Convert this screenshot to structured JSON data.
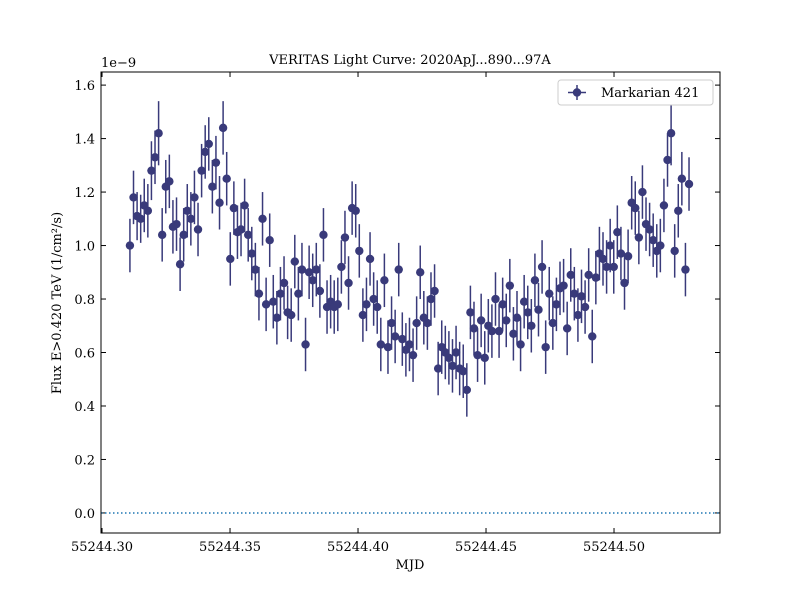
{
  "chart_data": {
    "type": "errorbar",
    "title": "VERITAS Light Curve: 2020ApJ...890...97A",
    "xlabel": "MJD",
    "ylabel": "Flux E>0.420 TeV (1/cm²/s)",
    "y_offset_label": "1e−9",
    "xlim": [
      55244.2996,
      55244.5414
    ],
    "ylim": [
      -0.075,
      1.649
    ],
    "xticks": [
      {
        "value": 55244.3,
        "label": "55244.30"
      },
      {
        "value": 55244.35,
        "label": "55244.35"
      },
      {
        "value": 55244.4,
        "label": "55244.40"
      },
      {
        "value": 55244.45,
        "label": "55244.45"
      },
      {
        "value": 55244.5,
        "label": "55244.50"
      }
    ],
    "yticks": [
      {
        "value": 0,
        "label": "0.0"
      },
      {
        "value": 0.2,
        "label": "0.2"
      },
      {
        "value": 0.4,
        "label": "0.4"
      },
      {
        "value": 0.6,
        "label": "0.6"
      },
      {
        "value": 0.8,
        "label": "0.8"
      },
      {
        "value": 1,
        "label": "1.0"
      },
      {
        "value": 1.2,
        "label": "1.2"
      },
      {
        "value": 1.4,
        "label": "1.4"
      },
      {
        "value": 1.6,
        "label": "1.6"
      }
    ],
    "hline": {
      "y": 0,
      "color": "#1f77b4"
    },
    "legend": "upper right",
    "series": [
      {
        "name": "Markarian 421",
        "color": "#393a7a",
        "x": [
          55244.3109,
          55244.3123,
          55244.3137,
          55244.3151,
          55244.3165,
          55244.3179,
          55244.3193,
          55244.3207,
          55244.3221,
          55244.3235,
          55244.3249,
          55244.3263,
          55244.3277,
          55244.3291,
          55244.3305,
          55244.3319,
          55244.3333,
          55244.3347,
          55244.3361,
          55244.3375,
          55244.3389,
          55244.3403,
          55244.3417,
          55244.3431,
          55244.3445,
          55244.3459,
          55244.3473,
          55244.3487,
          55244.3501,
          55244.3515,
          55244.3529,
          55244.3543,
          55244.3557,
          55244.3571,
          55244.3585,
          55244.3599,
          55244.3613,
          55244.3627,
          55244.3641,
          55244.3655,
          55244.3669,
          55244.3683,
          55244.3697,
          55244.3711,
          55244.3725,
          55244.3739,
          55244.3753,
          55244.3767,
          55244.3781,
          55244.3795,
          55244.3809,
          55244.3823,
          55244.3837,
          55244.3851,
          55244.3865,
          55244.3879,
          55244.3893,
          55244.3907,
          55244.3921,
          55244.3935,
          55244.3949,
          55244.3963,
          55244.3977,
          55244.3991,
          55244.4005,
          55244.4019,
          55244.4033,
          55244.4047,
          55244.4061,
          55244.4075,
          55244.4089,
          55244.4103,
          55244.4117,
          55244.4131,
          55244.4145,
          55244.4159,
          55244.4173,
          55244.4187,
          55244.4201,
          55244.4215,
          55244.4229,
          55244.4243,
          55244.4257,
          55244.4271,
          55244.4285,
          55244.4299,
          55244.4313,
          55244.4327,
          55244.4341,
          55244.4355,
          55244.4369,
          55244.4383,
          55244.4397,
          55244.4411,
          55244.4425,
          55244.4439,
          55244.4453,
          55244.4467,
          55244.4481,
          55244.4495,
          55244.4509,
          55244.4523,
          55244.4537,
          55244.4551,
          55244.4565,
          55244.4579,
          55244.4593,
          55244.4607,
          55244.4621,
          55244.4635,
          55244.4649,
          55244.4663,
          55244.4677,
          55244.4691,
          55244.4705,
          55244.4719,
          55244.4733,
          55244.4747,
          55244.4761,
          55244.4775,
          55244.4789,
          55244.4803,
          55244.4817,
          55244.4831,
          55244.4845,
          55244.4859,
          55244.4873,
          55244.4887,
          55244.4901,
          55244.4915,
          55244.4929,
          55244.4943,
          55244.4957,
          55244.4971,
          55244.4985,
          55244.4999,
          55244.5013,
          55244.5027,
          55244.5041,
          55244.5055,
          55244.5069,
          55244.5083,
          55244.5097,
          55244.5111,
          55244.5125,
          55244.5139,
          55244.5153,
          55244.5167,
          55244.5181,
          55244.5195,
          55244.5209,
          55244.5223,
          55244.5237,
          55244.5251,
          55244.5265,
          55244.5279,
          55244.5293
        ],
        "values": [
          1.0,
          1.18,
          1.11,
          1.1,
          1.15,
          1.13,
          1.28,
          1.33,
          1.42,
          1.04,
          1.22,
          1.24,
          1.07,
          1.08,
          0.93,
          1.04,
          1.13,
          1.1,
          1.18,
          1.06,
          1.28,
          1.35,
          1.38,
          1.22,
          1.31,
          1.16,
          1.44,
          1.25,
          0.95,
          1.14,
          1.05,
          1.06,
          1.15,
          1.04,
          0.97,
          0.91,
          0.82,
          1.1,
          0.78,
          1.02,
          0.79,
          0.73,
          0.82,
          0.86,
          0.75,
          0.74,
          0.94,
          0.82,
          0.91,
          0.63,
          0.9,
          0.87,
          0.91,
          0.83,
          1.04,
          0.77,
          0.79,
          0.77,
          0.78,
          0.92,
          1.03,
          0.86,
          1.14,
          1.13,
          0.98,
          0.74,
          0.78,
          0.95,
          0.8,
          0.77,
          0.63,
          0.87,
          0.62,
          0.71,
          0.66,
          0.91,
          0.65,
          0.61,
          0.63,
          0.59,
          0.71,
          0.9,
          0.73,
          0.71,
          0.8,
          0.83,
          0.54,
          0.62,
          0.6,
          0.58,
          0.55,
          0.6,
          0.54,
          0.53,
          0.46,
          0.75,
          0.69,
          0.59,
          0.72,
          0.58,
          0.7,
          0.68,
          0.8,
          0.68,
          0.78,
          0.72,
          0.85,
          0.67,
          0.73,
          0.63,
          0.79,
          0.75,
          0.7,
          0.87,
          0.76,
          0.92,
          0.62,
          0.82,
          0.71,
          0.78,
          0.84,
          0.85,
          0.69,
          0.89,
          0.82,
          0.74,
          0.81,
          0.77,
          0.89,
          0.66,
          0.88,
          0.97,
          0.95,
          0.92,
          1.0,
          0.92,
          1.05,
          0.97,
          0.86,
          0.96,
          1.16,
          1.14,
          1.03,
          1.2,
          1.08,
          1.06,
          1.02,
          0.98,
          1.0,
          1.15,
          1.32,
          1.42,
          0.98,
          1.13,
          1.25,
          0.91,
          1.23
        ],
        "errors": [
          0.1,
          0.1,
          0.09,
          0.09,
          0.1,
          0.1,
          0.11,
          0.1,
          0.12,
          0.1,
          0.1,
          0.1,
          0.1,
          0.1,
          0.1,
          0.1,
          0.1,
          0.1,
          0.1,
          0.1,
          0.1,
          0.1,
          0.1,
          0.1,
          0.1,
          0.1,
          0.1,
          0.1,
          0.1,
          0.1,
          0.1,
          0.1,
          0.1,
          0.1,
          0.1,
          0.1,
          0.1,
          0.1,
          0.1,
          0.1,
          0.1,
          0.1,
          0.1,
          0.1,
          0.1,
          0.1,
          0.1,
          0.1,
          0.1,
          0.1,
          0.1,
          0.1,
          0.1,
          0.1,
          0.1,
          0.1,
          0.1,
          0.1,
          0.1,
          0.1,
          0.1,
          0.1,
          0.1,
          0.1,
          0.1,
          0.1,
          0.1,
          0.1,
          0.1,
          0.1,
          0.1,
          0.1,
          0.1,
          0.1,
          0.1,
          0.1,
          0.1,
          0.1,
          0.1,
          0.1,
          0.1,
          0.1,
          0.1,
          0.1,
          0.1,
          0.1,
          0.1,
          0.1,
          0.1,
          0.1,
          0.1,
          0.1,
          0.1,
          0.1,
          0.1,
          0.1,
          0.1,
          0.1,
          0.1,
          0.1,
          0.1,
          0.1,
          0.1,
          0.1,
          0.1,
          0.1,
          0.1,
          0.1,
          0.1,
          0.1,
          0.1,
          0.1,
          0.1,
          0.1,
          0.1,
          0.1,
          0.1,
          0.1,
          0.1,
          0.1,
          0.1,
          0.1,
          0.1,
          0.1,
          0.1,
          0.1,
          0.1,
          0.1,
          0.1,
          0.1,
          0.1,
          0.1,
          0.1,
          0.1,
          0.1,
          0.1,
          0.1,
          0.1,
          0.1,
          0.1,
          0.1,
          0.1,
          0.1,
          0.1,
          0.1,
          0.1,
          0.1,
          0.1,
          0.1,
          0.1,
          0.1,
          0.12,
          0.1,
          0.1,
          0.1,
          0.1,
          0.1
        ]
      }
    ]
  }
}
